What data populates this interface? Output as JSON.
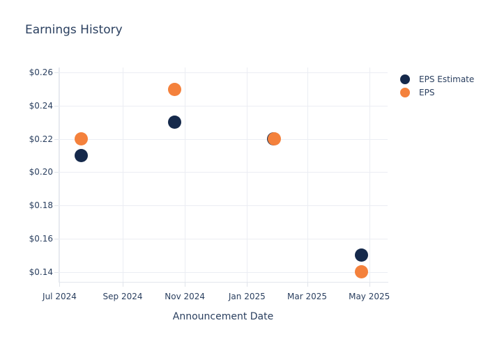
{
  "title": "Earnings History",
  "colors": {
    "background": "#ffffff",
    "text": "#2a3f5f",
    "gridline": "#ebedf3",
    "axis_line": "#e2e6ec",
    "eps_estimate": "#15294b",
    "eps": "#f4813c"
  },
  "legend": {
    "items": [
      {
        "label": "EPS Estimate",
        "color": "#15294b"
      },
      {
        "label": "EPS",
        "color": "#f4813c"
      }
    ]
  },
  "chart_data": {
    "type": "scatter",
    "title": "Earnings History",
    "xlabel": "Announcement Date",
    "ylabel": "",
    "grid": true,
    "legend_position": "right-top",
    "marker_diameter_px": 19,
    "xlim": [
      "2024-06-30",
      "2025-05-19"
    ],
    "ylim": [
      0.134,
      0.263
    ],
    "x_ticks": [
      {
        "date": "2024-07-01",
        "label": "Jul 2024"
      },
      {
        "date": "2024-09-01",
        "label": "Sep 2024"
      },
      {
        "date": "2024-11-01",
        "label": "Nov 2024"
      },
      {
        "date": "2025-01-01",
        "label": "Jan 2025"
      },
      {
        "date": "2025-03-01",
        "label": "Mar 2025"
      },
      {
        "date": "2025-05-01",
        "label": "May 2025"
      }
    ],
    "y_ticks": [
      {
        "value": 0.26,
        "label": "$0.26"
      },
      {
        "value": 0.24,
        "label": "$0.24"
      },
      {
        "value": 0.22,
        "label": "$0.22"
      },
      {
        "value": 0.2,
        "label": "$0.20"
      },
      {
        "value": 0.18,
        "label": "$0.18"
      },
      {
        "value": 0.16,
        "label": "$0.16"
      },
      {
        "value": 0.14,
        "label": "$0.14"
      }
    ],
    "series": [
      {
        "name": "EPS Estimate",
        "color": "#15294b",
        "points": [
          {
            "x": "2024-07-22",
            "y": 0.21
          },
          {
            "x": "2024-10-22",
            "y": 0.23
          },
          {
            "x": "2025-01-27",
            "y": 0.22
          },
          {
            "x": "2025-04-23",
            "y": 0.15
          }
        ]
      },
      {
        "name": "EPS",
        "color": "#f4813c",
        "points": [
          {
            "x": "2024-07-22",
            "y": 0.22
          },
          {
            "x": "2024-10-22",
            "y": 0.25
          },
          {
            "x": "2025-01-28",
            "y": 0.22
          },
          {
            "x": "2025-04-23",
            "y": 0.14
          }
        ]
      }
    ]
  }
}
